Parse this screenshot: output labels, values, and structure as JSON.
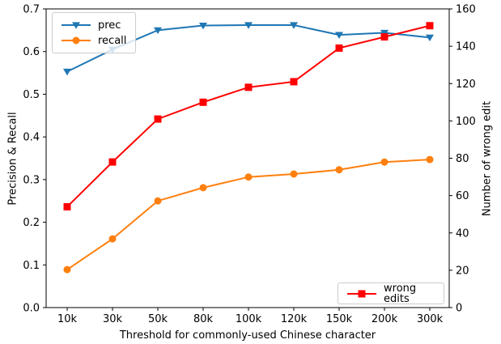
{
  "chart_data": {
    "type": "line",
    "title": "",
    "xlabel": "Threshold for commonly-used Chinese character",
    "ylabel": "Precision & Recall",
    "ylabel_right": "Number of wrong edit",
    "grid": false,
    "categories": [
      "10k",
      "30k",
      "50k",
      "80k",
      "100k",
      "120k",
      "150k",
      "200k",
      "300k"
    ],
    "series": [
      {
        "name": "prec",
        "axis": "left",
        "color": "#1f77b4",
        "marker": "triangle-down",
        "values": [
          0.553,
          0.605,
          0.65,
          0.661,
          0.662,
          0.662,
          0.639,
          0.644,
          0.633
        ]
      },
      {
        "name": "recall",
        "axis": "left",
        "color": "#ff7f0e",
        "marker": "circle",
        "values": [
          0.089,
          0.161,
          0.25,
          0.281,
          0.306,
          0.313,
          0.323,
          0.341,
          0.347
        ]
      },
      {
        "name": "wrong edits",
        "axis": "right",
        "color": "#ff0000",
        "marker": "square",
        "values": [
          54,
          78,
          101,
          110,
          118,
          121,
          139,
          145,
          151
        ]
      }
    ],
    "y_left": {
      "min": 0.0,
      "max": 0.7,
      "tick_labels": [
        "0.0",
        "0.1",
        "0.2",
        "0.3",
        "0.4",
        "0.5",
        "0.6",
        "0.7"
      ]
    },
    "y_right": {
      "min": 0,
      "max": 160,
      "tick_labels": [
        "0",
        "20",
        "40",
        "60",
        "80",
        "100",
        "120",
        "140",
        "160"
      ]
    },
    "legend_top_left_items": [
      "prec",
      "recall"
    ],
    "legend_bottom_right_items": [
      "wrong edits"
    ]
  }
}
